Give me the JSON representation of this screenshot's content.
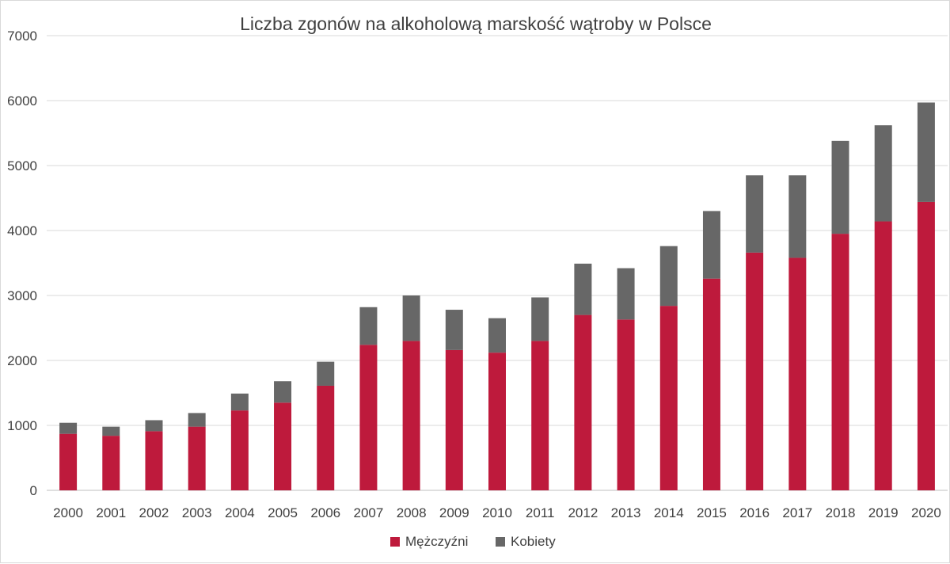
{
  "chart_data": {
    "type": "bar",
    "stacked": true,
    "title": "Liczba zgonów na alkoholową marskość wątroby w Polsce",
    "xlabel": "",
    "ylabel": "",
    "ylim": [
      0,
      7000
    ],
    "yticks": [
      0,
      1000,
      2000,
      3000,
      4000,
      5000,
      6000,
      7000
    ],
    "grid": true,
    "legend_position": "bottom",
    "categories": [
      "2000",
      "2001",
      "2002",
      "2003",
      "2004",
      "2005",
      "2006",
      "2007",
      "2008",
      "2009",
      "2010",
      "2011",
      "2012",
      "2013",
      "2014",
      "2015",
      "2016",
      "2017",
      "2018",
      "2019",
      "2020"
    ],
    "series": [
      {
        "name": "Mężczyźni",
        "color": "#be1a3c",
        "values": [
          870,
          840,
          910,
          980,
          1230,
          1350,
          1610,
          2240,
          2300,
          2160,
          2120,
          2300,
          2700,
          2630,
          2840,
          3260,
          3660,
          3580,
          3950,
          4140,
          4440
        ]
      },
      {
        "name": "Kobiety",
        "color": "#676767",
        "values": [
          170,
          140,
          170,
          210,
          260,
          330,
          370,
          580,
          700,
          620,
          530,
          670,
          790,
          790,
          920,
          1040,
          1190,
          1270,
          1430,
          1480,
          1530
        ]
      }
    ]
  }
}
